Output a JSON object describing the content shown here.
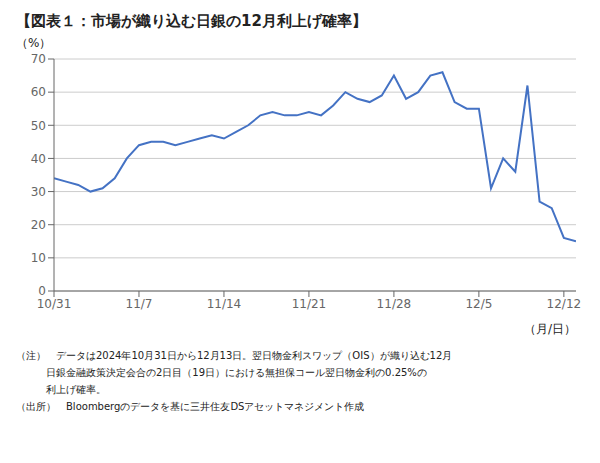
{
  "chart_data": {
    "type": "line",
    "title": "【図表１：市場が織り込む日銀の12月利上げ確率】",
    "y_label": "（%）",
    "x_label": "（月/日）",
    "annotations": [
      "（注）　データは2024年10月31日から12月13日。翌日物金利スワップ（OIS）が織り込む12月",
      "　　　日銀金融政策決定会合の2日目（19日）における無担保コール翌日物金利の0.25%の",
      "　　　利上げ確率。",
      "（出所）　Bloombergのデータを基に三井住友DSアセットマネジメント作成"
    ],
    "x": [
      0,
      1,
      2,
      3,
      4,
      5,
      6,
      7,
      8,
      9,
      10,
      11,
      12,
      13,
      14,
      15,
      16,
      17,
      18,
      19,
      20,
      21,
      22,
      23,
      24,
      25,
      26,
      27,
      28,
      29,
      30,
      31,
      32,
      33,
      34,
      35,
      36,
      37,
      38,
      39,
      40,
      41,
      42,
      43
    ],
    "values": [
      34,
      33,
      32,
      30,
      31,
      34,
      40,
      44,
      45,
      45,
      44,
      45,
      46,
      47,
      46,
      48,
      50,
      53,
      54,
      53,
      53,
      54,
      53,
      56,
      60,
      58,
      57,
      59,
      65,
      58,
      60,
      65,
      66,
      57,
      55,
      55,
      31,
      40,
      36,
      62,
      27,
      25,
      16,
      15
    ],
    "color": "#4472C4",
    "xlim": [
      0,
      43
    ],
    "xticks": [
      {
        "value": 0,
        "label": "10/31"
      },
      {
        "value": 7,
        "label": "11/7"
      },
      {
        "value": 14,
        "label": "11/14"
      },
      {
        "value": 21,
        "label": "11/21"
      },
      {
        "value": 28,
        "label": "11/28"
      },
      {
        "value": 35,
        "label": "12/5"
      },
      {
        "value": 42,
        "label": "12/12"
      }
    ],
    "ylim": [
      0,
      70
    ],
    "yticks": [
      0,
      10,
      20,
      30,
      40,
      50,
      60,
      70
    ],
    "grid": true
  }
}
